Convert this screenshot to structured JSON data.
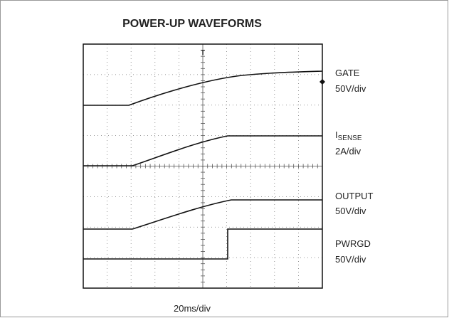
{
  "title": "POWER-UP WAVEFORMS",
  "channels": [
    {
      "name": "GATE",
      "scale": "50V/div"
    },
    {
      "name": {
        "main": "I",
        "sub": "SENSE"
      },
      "scale": "2A/div"
    },
    {
      "name": "OUTPUT",
      "scale": "50V/div"
    },
    {
      "name": "PWRGD",
      "scale": "50V/div"
    }
  ],
  "timebase": "20ms/div",
  "trigger": "T"
}
